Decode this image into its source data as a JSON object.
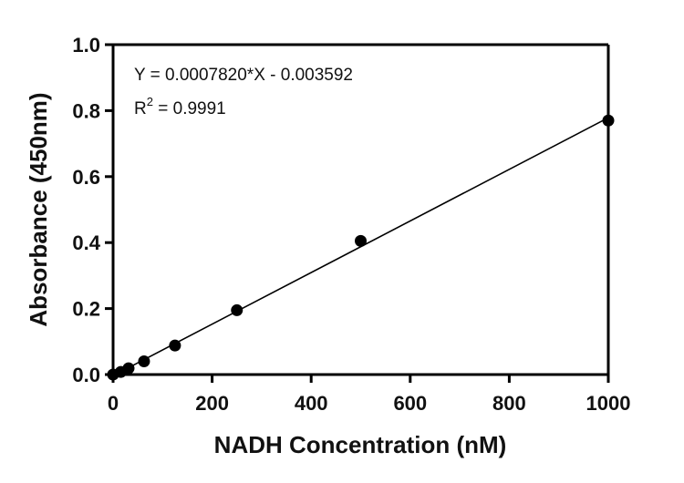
{
  "chart_data": {
    "type": "scatter",
    "title": "",
    "xlabel": "NADH Concentration (nM)",
    "ylabel": "Absorbance (450nm)",
    "xlim": [
      0,
      1000
    ],
    "ylim": [
      0.0,
      1.0
    ],
    "x_ticks": [
      "0",
      "200",
      "400",
      "600",
      "800",
      "1000"
    ],
    "y_ticks": [
      "0.0",
      "0.2",
      "0.4",
      "0.6",
      "0.8",
      "1.0"
    ],
    "grid": false,
    "legend": "none",
    "series": [
      {
        "points": [
          {
            "x": 0,
            "y": 0.0
          },
          {
            "x": 15.6,
            "y": 0.008
          },
          {
            "x": 31.25,
            "y": 0.019
          },
          {
            "x": 62.5,
            "y": 0.04
          },
          {
            "x": 125,
            "y": 0.088
          },
          {
            "x": 250,
            "y": 0.195
          },
          {
            "x": 500,
            "y": 0.405
          },
          {
            "x": 1000,
            "y": 0.77
          }
        ],
        "color": "#000000"
      }
    ],
    "fit_line": {
      "slope": 0.000782,
      "intercept": -0.003592,
      "x_range": [
        0,
        1000
      ],
      "color": "#000000"
    },
    "annotations": {
      "equation": "Y = 0.0007820*X - 0.003592",
      "r2_prefix": "R",
      "r2_superscript": "2",
      "r2_value": " = 0.9991"
    }
  }
}
